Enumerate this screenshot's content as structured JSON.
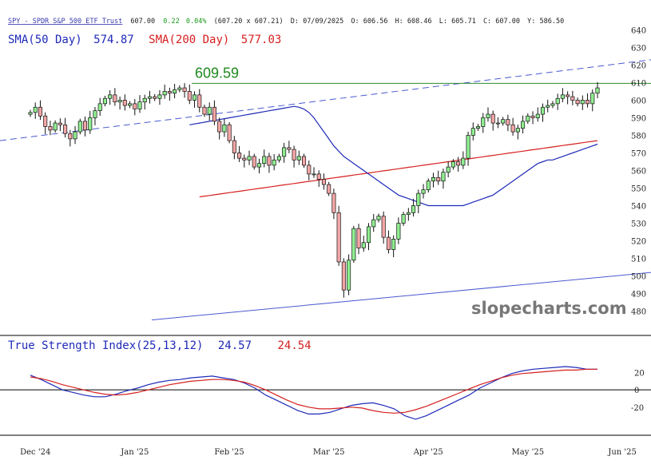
{
  "header": {
    "symbol": "SPY - SPDR S&P 500 ETF Trust",
    "last": "607.00",
    "change": "0.22",
    "change_pct": "0.04%",
    "bid_ask": "(607.20 x 607.21)",
    "date": "D: 07/09/2025",
    "open": "O: 606.56",
    "high": "H: 608.46",
    "low": "L: 605.71",
    "close": "C: 607.00",
    "y": "Y: 586.50"
  },
  "legend": {
    "sma50_label": "SMA(50 Day)",
    "sma50_value": "574.87",
    "sma200_label": "SMA(200 Day)",
    "sma200_value": "577.03"
  },
  "annotation": {
    "peak_label": "609.59",
    "peak_value": 609.59
  },
  "watermark": "slopecharts.com",
  "tsi": {
    "title": "True Strength Index(25,13,12)",
    "value1": "24.57",
    "value2": "24.54"
  },
  "colors": {
    "up": "#90ee90",
    "down": "#f4a6a6",
    "sma50": "#1f2ab8",
    "sma200": "#d62020",
    "peak_line": "#2e8b2e",
    "trend": "#4a5ad0",
    "header_link": "#3b3bb0",
    "change": "#1a9a1a"
  },
  "chart_data": [
    {
      "type": "candlestick",
      "x_ticks": [
        "Dec '24",
        "Jan '25",
        "Feb '25",
        "Mar '25",
        "Apr '25",
        "May '25",
        "Jun '25"
      ],
      "x_tick_index": [
        1,
        21,
        40,
        60,
        80,
        100,
        119
      ],
      "y_ticks": [
        480,
        490,
        500,
        510,
        520,
        530,
        540,
        550,
        560,
        570,
        580,
        590,
        600,
        610,
        620,
        630,
        640
      ],
      "ylim": [
        473,
        642
      ],
      "close": [
        593,
        596,
        591,
        585,
        583,
        587,
        586,
        581,
        578,
        582,
        588,
        583,
        590,
        594,
        598,
        601,
        603,
        599,
        600,
        597,
        598,
        595,
        599,
        601,
        602,
        601,
        603,
        605,
        604,
        606,
        607,
        605,
        600,
        603,
        596,
        592,
        596,
        588,
        582,
        586,
        577,
        570,
        567,
        566,
        568,
        562,
        564,
        568,
        563,
        566,
        568,
        573,
        572,
        566,
        568,
        563,
        558,
        558,
        555,
        552,
        547,
        536,
        508,
        492,
        509,
        527,
        516,
        519,
        528,
        532,
        534,
        522,
        515,
        521,
        530,
        535,
        536,
        540,
        547,
        549,
        554,
        556,
        554,
        559,
        562,
        565,
        563,
        567,
        580,
        584,
        585,
        590,
        592,
        587,
        587,
        589,
        586,
        582,
        584,
        588,
        591,
        590,
        592,
        596,
        597,
        598,
        601,
        603,
        602,
        600,
        598,
        600,
        598,
        604,
        607
      ],
      "sma50": [
        586,
        586.5,
        587,
        587.5,
        588,
        588.5,
        589,
        589.5,
        590,
        590.5,
        591,
        591.5,
        592,
        592.5,
        593,
        593.5,
        594,
        594.5,
        595,
        595.5,
        596,
        596.5,
        596,
        595,
        593,
        590,
        586,
        582,
        578,
        574,
        571,
        568,
        566,
        564,
        562,
        560,
        558,
        556,
        554,
        552,
        550,
        548,
        546,
        545,
        544,
        543,
        542,
        541,
        540,
        540,
        540,
        540,
        540,
        540,
        540,
        540,
        541,
        542,
        543,
        544,
        545,
        546,
        548,
        550,
        552,
        554,
        556,
        558,
        560,
        562,
        564,
        565,
        566,
        566,
        567,
        568,
        569,
        570,
        571,
        572,
        573,
        574,
        575
      ],
      "sma200": [
        545,
        545.4,
        545.8,
        546.2,
        546.6,
        547,
        547.4,
        547.8,
        548.2,
        548.6,
        549,
        549.4,
        549.8,
        550.2,
        550.6,
        551,
        551.4,
        551.8,
        552.2,
        552.6,
        553,
        553.4,
        553.8,
        554.2,
        554.6,
        555,
        555.4,
        555.8,
        556.2,
        556.6,
        557,
        557.4,
        557.8,
        558.2,
        558.6,
        559,
        559.4,
        559.8,
        560.2,
        560.6,
        561,
        561.4,
        561.8,
        562.2,
        562.6,
        563,
        563.4,
        563.8,
        564.2,
        564.6,
        565,
        565.4,
        565.8,
        566.2,
        566.6,
        567,
        567.4,
        567.8,
        568.2,
        568.6,
        569,
        569.4,
        569.8,
        570.2,
        570.6,
        571,
        571.4,
        571.8,
        572.2,
        572.6,
        573,
        573.4,
        573.8,
        574.2,
        574.6,
        575,
        575.4,
        575.8,
        576.2,
        576.6,
        577
      ],
      "horizontal_line": 609.59
    },
    {
      "type": "line",
      "title": "True Strength Index(25,13,12)",
      "y_ticks": [
        20,
        0,
        -20
      ],
      "ylim": [
        -48,
        40
      ],
      "series": [
        {
          "values": [
            17,
            12,
            6,
            0,
            -3,
            -6,
            -8,
            -8,
            -5,
            -1,
            2,
            6,
            9,
            11,
            12,
            14,
            15,
            16,
            14,
            12,
            8,
            2,
            -6,
            -12,
            -18,
            -24,
            -28,
            -28,
            -26,
            -22,
            -18,
            -16,
            -15,
            -18,
            -22,
            -30,
            -34,
            -30,
            -24,
            -18,
            -12,
            -6,
            2,
            8,
            14,
            19,
            22,
            24,
            25,
            26,
            27,
            26,
            24,
            24
          ]
        },
        {
          "values": [
            15,
            13,
            10,
            6,
            3,
            0,
            -3,
            -5,
            -6,
            -5,
            -3,
            0,
            3,
            6,
            8,
            10,
            11,
            12,
            12,
            11,
            9,
            5,
            0,
            -6,
            -12,
            -17,
            -20,
            -22,
            -22,
            -21,
            -20,
            -21,
            -24,
            -26,
            -27,
            -26,
            -23,
            -19,
            -14,
            -9,
            -4,
            1,
            6,
            10,
            14,
            17,
            19,
            20,
            21,
            22,
            23,
            23,
            24,
            24
          ]
        }
      ]
    }
  ]
}
